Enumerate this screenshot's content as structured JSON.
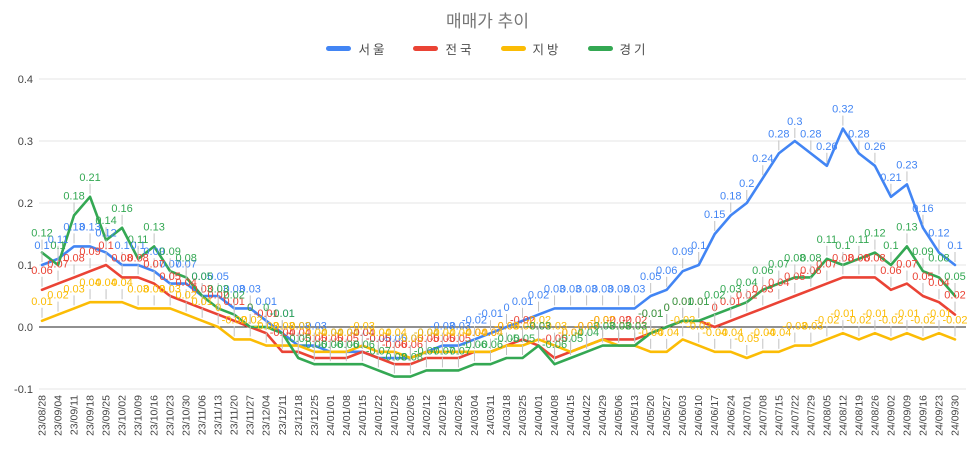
{
  "title": "매매가 추이",
  "y_axis": {
    "ticks": [
      "0.4",
      "0.3",
      "0.2",
      "0.1",
      "0.0",
      "-0.1"
    ]
  },
  "chart_data": {
    "type": "line",
    "title": "매매가 추이",
    "xlabel": "",
    "ylabel": "",
    "ylim": [
      -0.1,
      0.4
    ],
    "yticks": [
      0.4,
      0.3,
      0.2,
      0.1,
      0.0,
      -0.1
    ],
    "grid": true,
    "legend_position": "top",
    "x": [
      "23/08/28",
      "23/09/04",
      "23/09/11",
      "23/09/18",
      "23/09/25",
      "23/10/02",
      "23/10/09",
      "23/10/16",
      "23/10/23",
      "23/10/30",
      "23/11/06",
      "23/11/13",
      "23/11/20",
      "23/11/27",
      "23/12/04",
      "23/12/11",
      "23/12/18",
      "23/12/25",
      "24/01/01",
      "24/01/08",
      "24/01/15",
      "24/01/22",
      "24/01/29",
      "24/02/05",
      "24/02/12",
      "24/02/19",
      "24/02/26",
      "24/03/04",
      "24/03/11",
      "24/03/18",
      "24/03/25",
      "24/04/01",
      "24/04/08",
      "24/04/15",
      "24/04/22",
      "24/04/29",
      "24/05/06",
      "24/05/13",
      "24/05/20",
      "24/05/27",
      "24/06/03",
      "24/06/10",
      "24/06/17",
      "24/06/24",
      "24/07/01",
      "24/07/08",
      "24/07/15",
      "24/07/22",
      "24/07/29",
      "24/08/05",
      "24/08/12",
      "24/08/19",
      "24/08/26",
      "24/09/02",
      "24/09/09",
      "24/09/16",
      "24/09/23",
      "24/09/30"
    ],
    "series": [
      {
        "name": "서울",
        "color": "#4285F4",
        "values": [
          0.1,
          0.11,
          0.13,
          0.13,
          0.12,
          0.1,
          0.1,
          0.09,
          0.07,
          0.07,
          0.05,
          0.05,
          0.03,
          0.03,
          0.01,
          -0.01,
          -0.03,
          -0.03,
          -0.04,
          -0.04,
          -0.04,
          -0.05,
          -0.05,
          -0.05,
          -0.04,
          -0.03,
          -0.03,
          -0.02,
          -0.01,
          0.0,
          0.01,
          0.02,
          0.03,
          0.03,
          0.03,
          0.03,
          0.03,
          0.03,
          0.05,
          0.06,
          0.09,
          0.1,
          0.15,
          0.18,
          0.2,
          0.24,
          0.28,
          0.3,
          0.28,
          0.26,
          0.32,
          0.28,
          0.26,
          0.21,
          0.23,
          0.16,
          0.12,
          0.1
        ]
      },
      {
        "name": "전국",
        "color": "#EA4335",
        "values": [
          0.06,
          0.07,
          0.08,
          0.09,
          0.1,
          0.08,
          0.08,
          0.07,
          0.05,
          0.04,
          0.03,
          0.02,
          0.01,
          0.0,
          -0.01,
          -0.04,
          -0.04,
          -0.05,
          -0.05,
          -0.05,
          -0.04,
          -0.05,
          -0.06,
          -0.06,
          -0.05,
          -0.05,
          -0.05,
          -0.04,
          -0.04,
          -0.03,
          -0.02,
          -0.03,
          -0.05,
          -0.04,
          -0.03,
          -0.02,
          -0.02,
          -0.02,
          -0.01,
          0.0,
          0.01,
          0.01,
          0.0,
          0.01,
          0.02,
          0.03,
          0.04,
          0.05,
          0.06,
          0.07,
          0.08,
          0.08,
          0.08,
          0.06,
          0.07,
          0.05,
          0.04,
          0.02
        ]
      },
      {
        "name": "지방",
        "color": "#FBBC05",
        "values": [
          0.01,
          0.02,
          0.03,
          0.04,
          0.04,
          0.04,
          0.03,
          0.03,
          0.03,
          0.02,
          0.01,
          0.0,
          -0.02,
          -0.02,
          -0.03,
          -0.03,
          -0.03,
          -0.04,
          -0.04,
          -0.04,
          -0.03,
          -0.04,
          -0.04,
          -0.05,
          -0.04,
          -0.04,
          -0.04,
          -0.04,
          -0.04,
          -0.03,
          -0.03,
          -0.02,
          -0.03,
          -0.04,
          -0.03,
          -0.02,
          -0.03,
          -0.03,
          -0.04,
          -0.04,
          -0.02,
          -0.03,
          -0.04,
          -0.04,
          -0.05,
          -0.04,
          -0.04,
          -0.03,
          -0.03,
          -0.02,
          -0.01,
          -0.02,
          -0.01,
          -0.02,
          -0.01,
          -0.02,
          -0.01,
          -0.02
        ]
      },
      {
        "name": "경기",
        "color": "#34A853",
        "values": [
          0.12,
          0.1,
          0.18,
          0.21,
          0.14,
          0.16,
          0.11,
          0.13,
          0.09,
          0.08,
          0.05,
          0.03,
          0.02,
          0.0,
          0.0,
          -0.01,
          -0.05,
          -0.06,
          -0.06,
          -0.06,
          -0.06,
          -0.07,
          -0.08,
          -0.08,
          -0.07,
          -0.07,
          -0.07,
          -0.06,
          -0.06,
          -0.05,
          -0.05,
          -0.03,
          -0.06,
          -0.05,
          -0.04,
          -0.03,
          -0.03,
          -0.03,
          -0.01,
          0.0,
          0.01,
          0.01,
          0.02,
          0.03,
          0.04,
          0.06,
          0.07,
          0.08,
          0.08,
          0.11,
          0.1,
          0.11,
          0.12,
          0.1,
          0.13,
          0.09,
          0.08,
          0.05
        ]
      }
    ]
  }
}
